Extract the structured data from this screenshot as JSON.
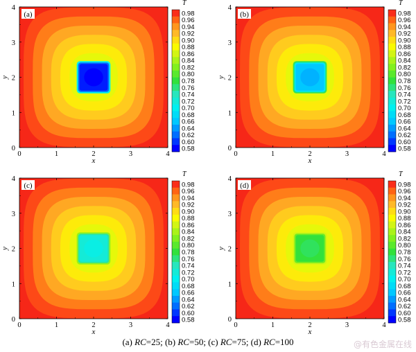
{
  "figure": {
    "caption_parts": [
      {
        "t": "(a) ",
        "i": false
      },
      {
        "t": "RC",
        "i": true
      },
      {
        "t": "=25; (b) ",
        "i": false
      },
      {
        "t": "RC",
        "i": true
      },
      {
        "t": "=50; (c) ",
        "i": false
      },
      {
        "t": "RC",
        "i": true
      },
      {
        "t": "=75; (d) ",
        "i": false
      },
      {
        "t": "RC",
        "i": true
      },
      {
        "t": "=100",
        "i": false
      }
    ],
    "watermark": "@有色金属在线"
  },
  "chart_data": [
    {
      "type": "heatmap",
      "panel": "(a)",
      "xlabel": "x",
      "ylabel": "y",
      "xlim": [
        0,
        4
      ],
      "ylim": [
        0,
        4
      ],
      "xticks": [
        0,
        1,
        2,
        3,
        4
      ],
      "yticks": [
        0,
        1,
        2,
        3,
        4
      ],
      "colorbar_title": "T",
      "colorbar_levels": [
        0.98,
        0.96,
        0.94,
        0.92,
        0.9,
        0.88,
        0.86,
        0.84,
        0.82,
        0.8,
        0.78,
        0.76,
        0.74,
        0.72,
        0.7,
        0.68,
        0.66,
        0.64,
        0.62,
        0.6,
        0.58
      ],
      "inner_region": {
        "x": [
          1.6,
          2.4
        ],
        "y": [
          1.6,
          2.4
        ]
      },
      "min_temperature": 0.58
    },
    {
      "type": "heatmap",
      "panel": "(b)",
      "xlabel": "x",
      "ylabel": "y",
      "xlim": [
        0,
        4
      ],
      "ylim": [
        0,
        4
      ],
      "xticks": [
        0,
        1,
        2,
        3,
        4
      ],
      "yticks": [
        0,
        1,
        2,
        3,
        4
      ],
      "colorbar_title": "T",
      "colorbar_levels": [
        0.98,
        0.96,
        0.94,
        0.92,
        0.9,
        0.88,
        0.86,
        0.84,
        0.82,
        0.8,
        0.78,
        0.76,
        0.74,
        0.72,
        0.7,
        0.68,
        0.66,
        0.64,
        0.62,
        0.6,
        0.58
      ],
      "inner_region": {
        "x": [
          1.6,
          2.4
        ],
        "y": [
          1.6,
          2.4
        ]
      },
      "min_temperature": 0.65
    },
    {
      "type": "heatmap",
      "panel": "(c)",
      "xlabel": "x",
      "ylabel": "y",
      "xlim": [
        0,
        4
      ],
      "ylim": [
        0,
        4
      ],
      "xticks": [
        0,
        1,
        2,
        3,
        4
      ],
      "yticks": [
        0,
        1,
        2,
        3,
        4
      ],
      "colorbar_title": "T",
      "colorbar_levels": [
        0.98,
        0.96,
        0.94,
        0.92,
        0.9,
        0.88,
        0.86,
        0.84,
        0.82,
        0.8,
        0.78,
        0.76,
        0.74,
        0.72,
        0.7,
        0.68,
        0.66,
        0.64,
        0.62,
        0.6,
        0.58
      ],
      "inner_region": {
        "x": [
          1.6,
          2.4
        ],
        "y": [
          1.6,
          2.4
        ]
      },
      "min_temperature": 0.71
    },
    {
      "type": "heatmap",
      "panel": "(d)",
      "xlabel": "x",
      "ylabel": "y",
      "xlim": [
        0,
        4
      ],
      "ylim": [
        0,
        4
      ],
      "xticks": [
        0,
        1,
        2,
        3,
        4
      ],
      "yticks": [
        0,
        1,
        2,
        3,
        4
      ],
      "colorbar_title": "T",
      "colorbar_levels": [
        0.98,
        0.96,
        0.94,
        0.92,
        0.9,
        0.88,
        0.86,
        0.84,
        0.82,
        0.8,
        0.78,
        0.76,
        0.74,
        0.72,
        0.7,
        0.68,
        0.66,
        0.64,
        0.62,
        0.6,
        0.58
      ],
      "inner_region": {
        "x": [
          1.6,
          2.4
        ],
        "y": [
          1.6,
          2.4
        ]
      },
      "min_temperature": 0.77
    }
  ]
}
